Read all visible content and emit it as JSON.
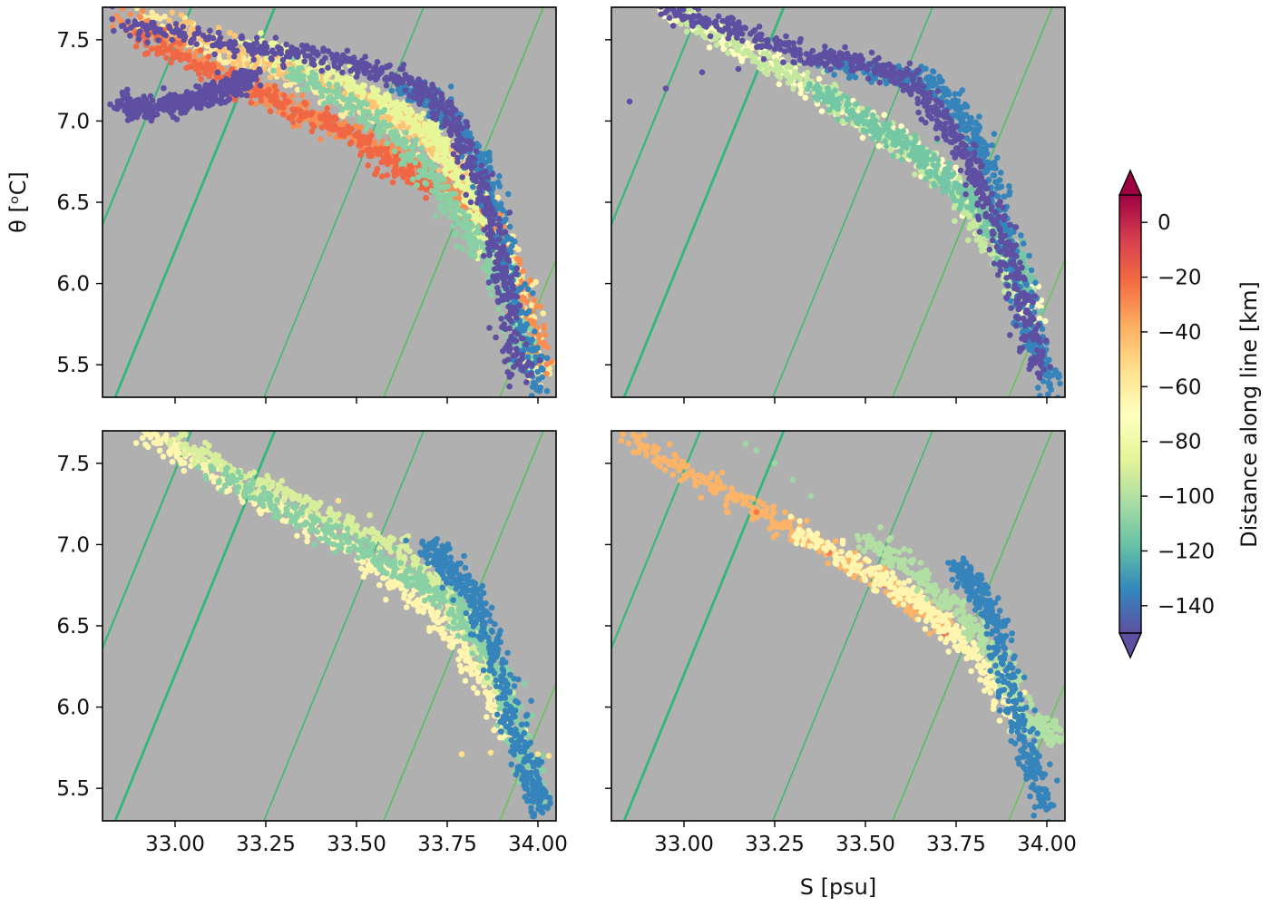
{
  "figure": {
    "colorbar": {
      "label": "Distance along line [km]",
      "range": [
        -150,
        10
      ],
      "ticks": [
        0,
        -20,
        -40,
        -60,
        -80,
        -100,
        -120,
        -140
      ],
      "tick_labels": [
        "0",
        "−20",
        "−40",
        "−60",
        "−80",
        "−100",
        "−120",
        "−140"
      ],
      "colormap": "Spectral",
      "extend": "both"
    }
  },
  "chart_data": [
    {
      "type": "scatter",
      "panel": "top-left",
      "background": "#b0b0b0",
      "xlim": [
        32.8,
        34.05
      ],
      "ylim": [
        5.3,
        7.7
      ],
      "xticks": [
        33.0,
        33.25,
        33.5,
        33.75,
        34.0
      ],
      "xtick_labels": [],
      "yticks": [
        5.5,
        6.0,
        6.5,
        7.0,
        7.5
      ],
      "ytick_labels": [
        "5.5",
        "6.0",
        "6.5",
        "7.0",
        "7.5"
      ],
      "xlabel": "",
      "ylabel": "θ [ᵒC]",
      "series": [
        {
          "distance_km": -60,
          "S": [
            32.9,
            33.1,
            33.3,
            33.5,
            33.65,
            33.8,
            33.9,
            33.97,
            34.0
          ],
          "theta": [
            7.65,
            7.45,
            7.3,
            7.1,
            6.95,
            6.7,
            6.3,
            5.8,
            5.4
          ]
        },
        {
          "distance_km": -30,
          "S": [
            32.85,
            33.05,
            33.25,
            33.45,
            33.6,
            33.75,
            33.88,
            33.96,
            34.02
          ],
          "theta": [
            7.65,
            7.4,
            7.15,
            6.95,
            6.8,
            6.6,
            6.3,
            5.9,
            5.5
          ]
        },
        {
          "distance_km": -20,
          "S": [
            32.9,
            33.1,
            33.3,
            33.5,
            33.62,
            33.72
          ],
          "theta": [
            7.5,
            7.3,
            7.1,
            6.9,
            6.7,
            6.6
          ]
        },
        {
          "distance_km": -45,
          "S": [
            33.0,
            33.2,
            33.4,
            33.6,
            33.75,
            33.85
          ],
          "theta": [
            7.6,
            7.4,
            7.25,
            7.05,
            6.8,
            6.55
          ]
        },
        {
          "distance_km": -85,
          "S": [
            33.2,
            33.4,
            33.6,
            33.72,
            33.8,
            33.86,
            33.92
          ],
          "theta": [
            7.5,
            7.3,
            7.1,
            6.9,
            6.6,
            6.3,
            6.0
          ]
        },
        {
          "distance_km": -110,
          "S": [
            33.3,
            33.5,
            33.65,
            33.75,
            33.85,
            33.92,
            33.97
          ],
          "theta": [
            7.3,
            7.1,
            6.8,
            6.5,
            6.2,
            5.9,
            5.5
          ]
        },
        {
          "distance_km": -135,
          "S": [
            33.62,
            33.7,
            33.78,
            33.85,
            33.9,
            33.95,
            34.0
          ],
          "theta": [
            7.2,
            7.15,
            6.95,
            6.7,
            6.3,
            5.8,
            5.35
          ]
        },
        {
          "distance_km": -150,
          "S": [
            32.85,
            33.1,
            33.3,
            33.5,
            33.65,
            33.75,
            33.82,
            33.88,
            33.92,
            33.95
          ],
          "theta": [
            7.6,
            7.5,
            7.42,
            7.35,
            7.25,
            7.05,
            6.75,
            6.3,
            5.9,
            5.4
          ]
        },
        {
          "distance_km": -150,
          "S": [
            32.85,
            32.92,
            33.0,
            33.08,
            33.15,
            33.22
          ],
          "theta": [
            7.1,
            7.08,
            7.1,
            7.15,
            7.2,
            7.3
          ]
        }
      ]
    },
    {
      "type": "scatter",
      "panel": "top-right",
      "background": "#b0b0b0",
      "xlim": [
        32.8,
        34.05
      ],
      "ylim": [
        5.3,
        7.7
      ],
      "xticks": [
        33.0,
        33.25,
        33.5,
        33.75,
        34.0
      ],
      "xtick_labels": [],
      "yticks": [
        5.5,
        6.0,
        6.5,
        7.0,
        7.5
      ],
      "ytick_labels": [],
      "xlabel": "",
      "ylabel": "",
      "series": [
        {
          "distance_km": -70,
          "S": [
            32.95,
            33.15,
            33.35,
            33.55,
            33.7,
            33.82,
            33.9,
            33.96
          ],
          "theta": [
            7.7,
            7.45,
            7.2,
            6.95,
            6.7,
            6.45,
            6.15,
            5.8
          ]
        },
        {
          "distance_km": -95,
          "S": [
            33.0,
            33.2,
            33.4,
            33.6,
            33.75,
            33.85,
            33.93
          ],
          "theta": [
            7.65,
            7.4,
            7.15,
            6.85,
            6.55,
            6.25,
            5.9
          ]
        },
        {
          "distance_km": -115,
          "S": [
            33.35,
            33.5,
            33.62,
            33.72,
            33.82,
            33.9,
            33.95
          ],
          "theta": [
            7.2,
            7.0,
            6.85,
            6.65,
            6.45,
            6.2,
            5.9
          ]
        },
        {
          "distance_km": -135,
          "S": [
            33.4,
            33.55,
            33.68,
            33.78,
            33.85,
            33.9,
            33.96,
            34.02
          ],
          "theta": [
            7.35,
            7.3,
            7.25,
            7.0,
            6.7,
            6.2,
            5.7,
            5.35
          ]
        },
        {
          "distance_km": -150,
          "S": [
            32.95,
            33.15,
            33.35,
            33.5,
            33.62,
            33.72,
            33.8,
            33.87,
            33.93,
            33.98
          ],
          "theta": [
            7.7,
            7.55,
            7.4,
            7.35,
            7.25,
            7.0,
            6.7,
            6.3,
            5.9,
            5.45
          ]
        },
        {
          "distance_km": -150,
          "S": [
            32.85,
            32.95,
            33.05,
            33.15,
            33.22
          ],
          "theta": [
            7.12,
            7.2,
            7.3,
            7.32,
            7.38
          ]
        }
      ]
    },
    {
      "type": "scatter",
      "panel": "bottom-left",
      "background": "#b0b0b0",
      "xlim": [
        32.8,
        34.05
      ],
      "ylim": [
        5.3,
        7.7
      ],
      "xticks": [
        33.0,
        33.25,
        33.5,
        33.75,
        34.0
      ],
      "xtick_labels": [
        "33.00",
        "33.25",
        "33.50",
        "33.75",
        "34.00"
      ],
      "yticks": [
        5.5,
        6.0,
        6.5,
        7.0,
        7.5
      ],
      "ytick_labels": [
        "5.5",
        "6.0",
        "6.5",
        "7.0",
        "7.5"
      ],
      "xlabel": "",
      "ylabel": "",
      "series": [
        {
          "distance_km": -65,
          "S": [
            32.9,
            33.1,
            33.3,
            33.5,
            33.65,
            33.78,
            33.87,
            33.94
          ],
          "theta": [
            7.7,
            7.45,
            7.2,
            6.95,
            6.7,
            6.4,
            6.1,
            5.75
          ]
        },
        {
          "distance_km": -90,
          "S": [
            33.0,
            33.2,
            33.4,
            33.6,
            33.72,
            33.82,
            33.9
          ],
          "theta": [
            7.65,
            7.4,
            7.2,
            7.0,
            6.75,
            6.45,
            6.1
          ]
        },
        {
          "distance_km": -110,
          "S": [
            33.1,
            33.3,
            33.5,
            33.65,
            33.78,
            33.88,
            33.95,
            34.0
          ],
          "theta": [
            7.45,
            7.2,
            7.0,
            6.8,
            6.6,
            6.25,
            5.8,
            5.4
          ]
        },
        {
          "distance_km": -135,
          "S": [
            33.7,
            33.76,
            33.82,
            33.87,
            33.92,
            33.97,
            34.02
          ],
          "theta": [
            7.0,
            6.85,
            6.7,
            6.4,
            6.0,
            5.6,
            5.35
          ]
        },
        {
          "distance_km": -55,
          "S": [
            33.45,
            33.79,
            33.87,
            34.0,
            34.03
          ],
          "theta": [
            7.27,
            5.71,
            5.72,
            5.71,
            5.7
          ]
        }
      ]
    },
    {
      "type": "scatter",
      "panel": "bottom-right",
      "background": "#b0b0b0",
      "xlim": [
        32.8,
        34.05
      ],
      "ylim": [
        5.3,
        7.7
      ],
      "xticks": [
        33.0,
        33.25,
        33.5,
        33.75,
        34.0
      ],
      "xtick_labels": [
        "33.00",
        "33.25",
        "33.50",
        "33.75",
        "34.00"
      ],
      "yticks": [
        5.5,
        6.0,
        6.5,
        7.0,
        7.5
      ],
      "ytick_labels": [],
      "xlabel": "S [psu]",
      "ylabel": "",
      "series": [
        {
          "distance_km": -40,
          "S": [
            32.85,
            33.05,
            33.25,
            33.45,
            33.6,
            33.72
          ],
          "theta": [
            7.65,
            7.4,
            7.15,
            6.9,
            6.7,
            6.5
          ]
        },
        {
          "distance_km": -25,
          "S": [
            33.2,
            33.4,
            33.55,
            33.65,
            33.72
          ],
          "theta": [
            7.2,
            6.95,
            6.75,
            6.6,
            6.45
          ]
        },
        {
          "distance_km": -65,
          "S": [
            33.3,
            33.5,
            33.65,
            33.75,
            33.85,
            33.92
          ],
          "theta": [
            7.1,
            6.85,
            6.65,
            6.45,
            6.2,
            5.9
          ]
        },
        {
          "distance_km": -100,
          "S": [
            33.5,
            33.65,
            33.78,
            33.88,
            33.95,
            34.05
          ],
          "theta": [
            7.05,
            6.8,
            6.55,
            6.25,
            5.9,
            5.82
          ]
        },
        {
          "distance_km": -135,
          "S": [
            33.75,
            33.8,
            33.86,
            33.9,
            33.95,
            34.0
          ],
          "theta": [
            6.85,
            6.75,
            6.5,
            6.1,
            5.7,
            5.35
          ]
        },
        {
          "distance_km": -105,
          "S": [
            33.17,
            33.2,
            33.25,
            33.3,
            33.35
          ],
          "theta": [
            7.62,
            7.58,
            7.5,
            7.4,
            7.3
          ]
        }
      ]
    }
  ]
}
